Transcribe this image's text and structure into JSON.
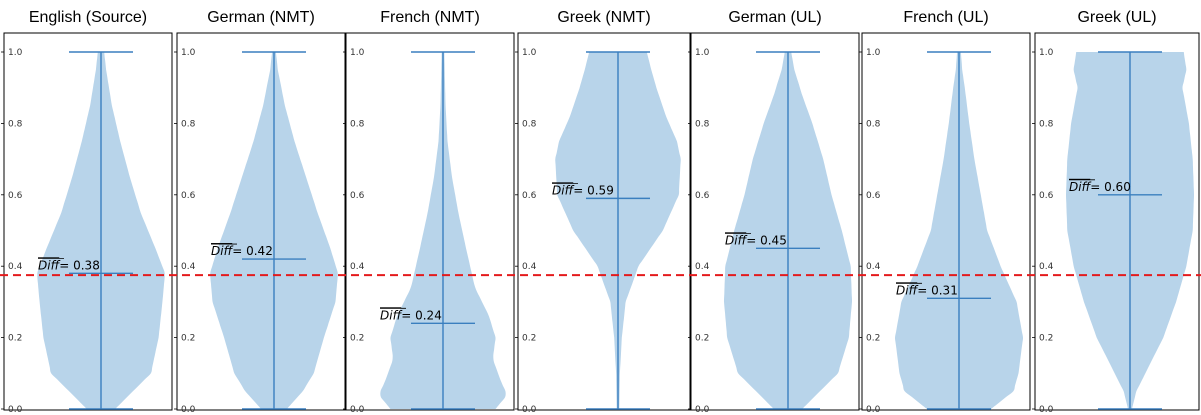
{
  "chart_data": {
    "type": "violin",
    "ylim": [
      0,
      1
    ],
    "yticks": [
      "0.0",
      "0.2",
      "0.4",
      "0.6",
      "0.8",
      "1.0"
    ],
    "reference_line": {
      "value": 0.375,
      "color": "#e41a1c",
      "style": "dashed"
    },
    "mean_symbol": "Diff",
    "colors": {
      "body": "#b8d4ea",
      "lines": "#3a7fbf"
    },
    "panels": [
      {
        "title": "English (Source)",
        "mean": 0.38,
        "mean_label": "= 0.38",
        "min": 0.0,
        "max": 1.0,
        "density": [
          [
            0.0,
            0.22
          ],
          [
            0.05,
            0.5
          ],
          [
            0.1,
            0.78
          ],
          [
            0.2,
            0.9
          ],
          [
            0.3,
            0.96
          ],
          [
            0.38,
            1.0
          ],
          [
            0.45,
            0.85
          ],
          [
            0.55,
            0.62
          ],
          [
            0.65,
            0.45
          ],
          [
            0.75,
            0.3
          ],
          [
            0.85,
            0.17
          ],
          [
            0.95,
            0.08
          ],
          [
            1.0,
            0.05
          ]
        ]
      },
      {
        "title": "German (NMT)",
        "mean": 0.42,
        "mean_label": "= 0.42",
        "min": 0.0,
        "max": 1.0,
        "density": [
          [
            0.0,
            0.2
          ],
          [
            0.05,
            0.45
          ],
          [
            0.1,
            0.62
          ],
          [
            0.2,
            0.78
          ],
          [
            0.3,
            0.96
          ],
          [
            0.38,
            1.0
          ],
          [
            0.45,
            0.88
          ],
          [
            0.55,
            0.68
          ],
          [
            0.65,
            0.5
          ],
          [
            0.75,
            0.32
          ],
          [
            0.85,
            0.17
          ],
          [
            0.95,
            0.06
          ],
          [
            1.0,
            0.03
          ]
        ]
      },
      {
        "title": "French (NMT)",
        "mean": 0.24,
        "mean_label": "= 0.24",
        "min": 0.0,
        "max": 1.0,
        "density": [
          [
            0.0,
            0.82
          ],
          [
            0.04,
            1.0
          ],
          [
            0.08,
            0.9
          ],
          [
            0.14,
            0.78
          ],
          [
            0.2,
            0.82
          ],
          [
            0.26,
            0.72
          ],
          [
            0.34,
            0.5
          ],
          [
            0.45,
            0.36
          ],
          [
            0.55,
            0.24
          ],
          [
            0.65,
            0.14
          ],
          [
            0.75,
            0.07
          ],
          [
            0.85,
            0.04
          ],
          [
            1.0,
            0.02
          ]
        ]
      },
      {
        "title": "Greek (NMT)",
        "mean": 0.59,
        "mean_label": "= 0.59",
        "min": 0.0,
        "max": 1.0,
        "density": [
          [
            0.0,
            0.02
          ],
          [
            0.1,
            0.03
          ],
          [
            0.2,
            0.06
          ],
          [
            0.3,
            0.12
          ],
          [
            0.4,
            0.32
          ],
          [
            0.5,
            0.7
          ],
          [
            0.6,
            0.95
          ],
          [
            0.7,
            0.98
          ],
          [
            0.75,
            0.92
          ],
          [
            0.82,
            0.75
          ],
          [
            0.9,
            0.6
          ],
          [
            0.95,
            0.52
          ],
          [
            1.0,
            0.45
          ]
        ]
      },
      {
        "title": "German (UL)",
        "mean": 0.45,
        "mean_label": "= 0.45",
        "min": 0.0,
        "max": 1.0,
        "density": [
          [
            0.0,
            0.22
          ],
          [
            0.05,
            0.5
          ],
          [
            0.1,
            0.78
          ],
          [
            0.2,
            0.95
          ],
          [
            0.3,
            1.0
          ],
          [
            0.4,
            0.98
          ],
          [
            0.5,
            0.84
          ],
          [
            0.6,
            0.68
          ],
          [
            0.7,
            0.55
          ],
          [
            0.8,
            0.38
          ],
          [
            0.88,
            0.22
          ],
          [
            0.95,
            0.1
          ],
          [
            1.0,
            0.05
          ]
        ]
      },
      {
        "title": "French (UL)",
        "mean": 0.31,
        "mean_label": "= 0.31",
        "min": 0.0,
        "max": 1.0,
        "density": [
          [
            0.0,
            0.5
          ],
          [
            0.05,
            0.85
          ],
          [
            0.1,
            0.93
          ],
          [
            0.2,
            1.0
          ],
          [
            0.3,
            0.9
          ],
          [
            0.4,
            0.65
          ],
          [
            0.5,
            0.44
          ],
          [
            0.6,
            0.34
          ],
          [
            0.7,
            0.24
          ],
          [
            0.8,
            0.16
          ],
          [
            0.9,
            0.09
          ],
          [
            0.95,
            0.05
          ],
          [
            1.0,
            0.03
          ]
        ]
      },
      {
        "title": "Greek (UL)",
        "mean": 0.6,
        "mean_label": "= 0.60",
        "min": 0.0,
        "max": 1.0,
        "density": [
          [
            0.0,
            0.03
          ],
          [
            0.05,
            0.1
          ],
          [
            0.1,
            0.24
          ],
          [
            0.2,
            0.52
          ],
          [
            0.3,
            0.72
          ],
          [
            0.4,
            0.88
          ],
          [
            0.5,
            0.98
          ],
          [
            0.6,
            1.0
          ],
          [
            0.7,
            0.98
          ],
          [
            0.8,
            0.92
          ],
          [
            0.9,
            0.82
          ],
          [
            0.95,
            0.88
          ],
          [
            1.0,
            0.84
          ]
        ]
      }
    ]
  }
}
